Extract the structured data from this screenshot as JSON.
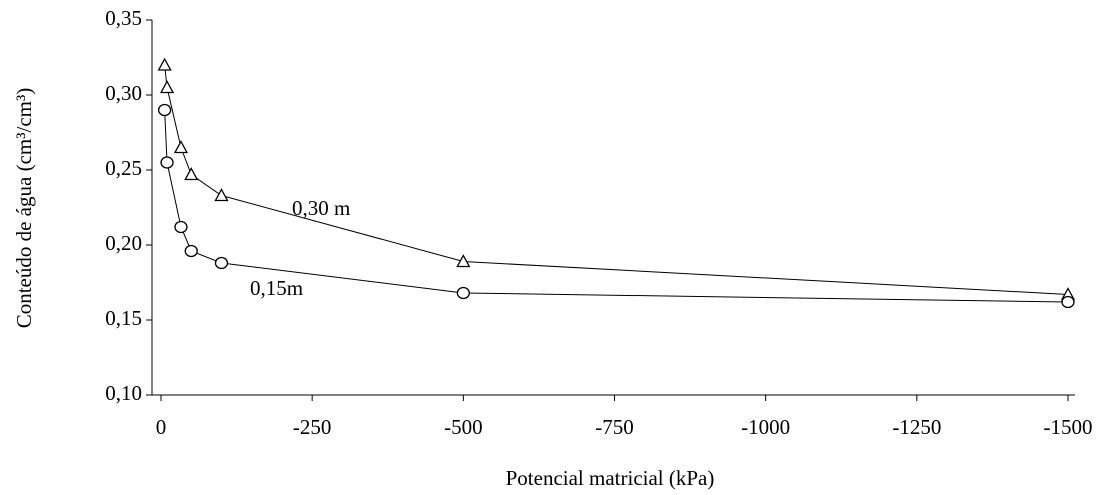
{
  "chart_data": {
    "type": "line",
    "x_label": "Potencial matricial (kPa)",
    "y_label": "Conteúdo de água (cm³/cm³)",
    "x": [
      -6,
      -10,
      -33,
      -50,
      -100,
      -500,
      -1500
    ],
    "series": [
      {
        "name": "0,30 m",
        "color": "#000000",
        "marker": "triangle",
        "values": [
          0.32,
          0.305,
          0.265,
          0.247,
          0.233,
          0.189,
          0.167
        ]
      },
      {
        "name": "0,15m",
        "color": "#000000",
        "marker": "circle",
        "values": [
          0.29,
          0.255,
          0.212,
          0.196,
          0.188,
          0.168,
          0.162
        ]
      }
    ],
    "xlim": [
      0,
      -1500
    ],
    "xticks": [
      0,
      -250,
      -500,
      -750,
      -1000,
      -1250,
      -1500
    ],
    "ylim": [
      0.1,
      0.35
    ],
    "yticks": [
      {
        "value": 0.1,
        "label": "0,10"
      },
      {
        "value": 0.15,
        "label": "0,15"
      },
      {
        "value": 0.2,
        "label": "0,20"
      },
      {
        "value": 0.25,
        "label": "0,25"
      },
      {
        "value": 0.3,
        "label": "0,30"
      },
      {
        "value": 0.35,
        "label": "0,35"
      }
    ],
    "grid": false
  }
}
